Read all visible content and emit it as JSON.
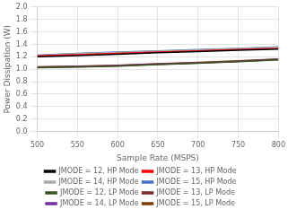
{
  "chart_data": {
    "type": "line",
    "x_label": "Sample Rate (MSPS)",
    "y_label": "Power Dissipation (W)",
    "x": [
      500,
      550,
      600,
      650,
      700,
      750,
      800
    ],
    "series": [
      {
        "name": "JMODE = 12, HP Mode",
        "color": "#000000",
        "values": [
          1.2,
          1.22,
          1.24,
          1.265,
          1.285,
          1.305,
          1.325
        ]
      },
      {
        "name": "JMODE = 13, HP Mode",
        "color": "#ff0000",
        "values": [
          1.215,
          1.235,
          1.255,
          1.275,
          1.295,
          1.315,
          1.335
        ]
      },
      {
        "name": "JMODE = 14, HP Mode",
        "color": "#aaaaaa",
        "values": [
          1.22,
          1.25,
          1.27,
          1.29,
          1.31,
          1.33,
          1.355
        ]
      },
      {
        "name": "JMODE = 15, HP Mode",
        "color": "#4472c4",
        "values": [
          1.225,
          1.255,
          1.275,
          1.295,
          1.315,
          1.335,
          1.36
        ]
      },
      {
        "name": "JMODE = 12, LP Mode",
        "color": "#375623",
        "values": [
          1.025,
          1.035,
          1.05,
          1.075,
          1.095,
          1.12,
          1.15
        ]
      },
      {
        "name": "JMODE = 13, LP Mode",
        "color": "#7b2c2c",
        "values": [
          1.03,
          1.04,
          1.055,
          1.08,
          1.1,
          1.125,
          1.155
        ]
      },
      {
        "name": "JMODE = 14, LP Mode",
        "color": "#7030a0",
        "values": [
          1.035,
          1.045,
          1.06,
          1.085,
          1.105,
          1.13,
          1.16
        ]
      },
      {
        "name": "JMODE = 15, LP Mode",
        "color": "#833c00",
        "values": [
          1.04,
          1.05,
          1.065,
          1.09,
          1.11,
          1.135,
          1.165
        ]
      }
    ],
    "xlim": [
      500,
      800
    ],
    "ylim": [
      0,
      2
    ],
    "xticks": [
      500,
      550,
      600,
      650,
      700,
      750,
      800
    ],
    "yticks": [
      {
        "value": 0,
        "label": "0.0"
      },
      0.2,
      0.4,
      0.6,
      0.8,
      {
        "value": 1.0,
        "label": "1.0"
      },
      1.2,
      1.4,
      1.6,
      1.8,
      {
        "value": 2.0,
        "label": "2.0"
      }
    ],
    "grid": true,
    "legend": "bottom",
    "line_style": "solid"
  }
}
